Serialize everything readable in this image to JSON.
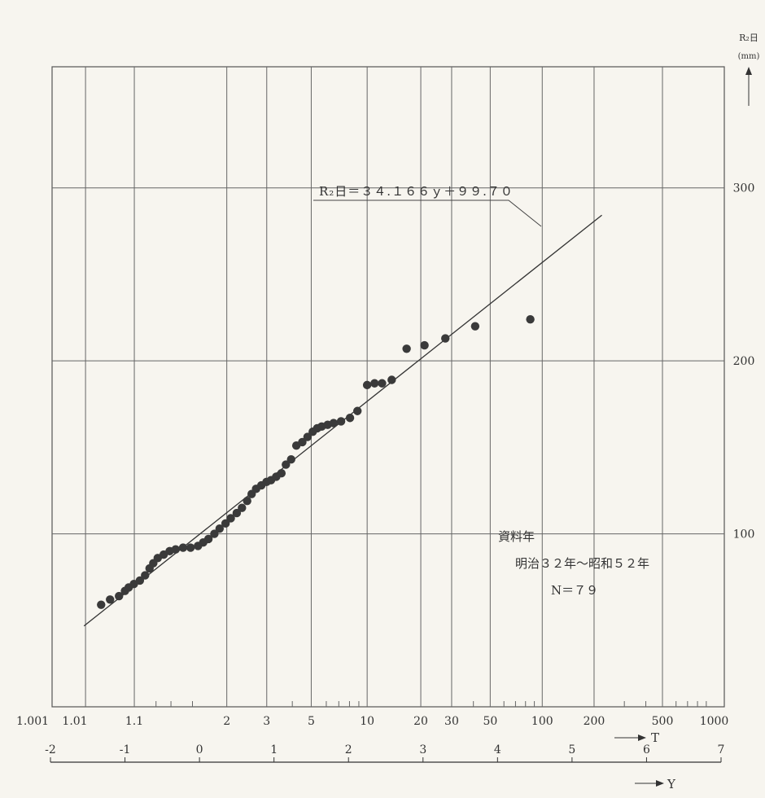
{
  "chart_data": {
    "type": "scatter",
    "title": "",
    "ylabel": "R₂日",
    "yunit": "(mm)",
    "xlabel_top": "T",
    "xlabel_bottom": "Y",
    "ylim": [
      0,
      370
    ],
    "y_ticks": [
      100,
      200,
      300
    ],
    "y_tick_labels": [
      "100",
      "200",
      "300"
    ],
    "x_lim_y": [
      -2,
      7
    ],
    "y_axis_ticks": [
      -2,
      -1,
      0,
      1,
      2,
      3,
      4,
      5,
      6,
      7
    ],
    "y_axis_tick_labels": [
      "-2",
      "-1",
      "0",
      "1",
      "2",
      "3",
      "4",
      "5",
      "6",
      "7"
    ],
    "t_axis_labels": [
      {
        "label": "1.001",
        "t": 1.001
      },
      {
        "label": "1.01",
        "t": 1.01
      },
      {
        "label": "1.1",
        "t": 1.1
      },
      {
        "label": "2",
        "t": 2
      },
      {
        "label": "3",
        "t": 3
      },
      {
        "label": "5",
        "t": 5
      },
      {
        "label": "10",
        "t": 10
      },
      {
        "label": "20",
        "t": 20
      },
      {
        "label": "30",
        "t": 30
      },
      {
        "label": "50",
        "t": 50
      },
      {
        "label": "100",
        "t": 100
      },
      {
        "label": "200",
        "t": 200
      },
      {
        "label": "500",
        "t": 500
      },
      {
        "label": "1000",
        "t": 1000
      }
    ],
    "t_gridlines": [
      1.01,
      1.1,
      2,
      3,
      5,
      10,
      20,
      30,
      50,
      100,
      200,
      500
    ],
    "grid": true,
    "fit_line": {
      "label": "R₂日＝３４.１６６ｙ＋９９.７０",
      "slope": 34.166,
      "intercept": 99.7,
      "y_range": [
        -1.55,
        5.4
      ]
    },
    "annotation": {
      "line1": "資料年",
      "line2": "明治３２年〜昭和５２年",
      "line3": "N＝７９"
    },
    "series": [
      {
        "points": [
          [
            -1.32,
            59
          ],
          [
            -1.2,
            62
          ],
          [
            -1.08,
            64
          ],
          [
            -1.0,
            67
          ],
          [
            -0.95,
            69
          ],
          [
            -0.88,
            71
          ],
          [
            -0.8,
            73
          ],
          [
            -0.73,
            76
          ],
          [
            -0.67,
            80
          ],
          [
            -0.62,
            83
          ],
          [
            -0.56,
            86
          ],
          [
            -0.48,
            88
          ],
          [
            -0.4,
            90
          ],
          [
            -0.32,
            91
          ],
          [
            -0.22,
            92
          ],
          [
            -0.12,
            92
          ],
          [
            -0.02,
            93
          ],
          [
            0.05,
            95
          ],
          [
            0.12,
            97
          ],
          [
            0.2,
            100
          ],
          [
            0.27,
            103
          ],
          [
            0.35,
            106
          ],
          [
            0.42,
            109
          ],
          [
            0.5,
            112
          ],
          [
            0.57,
            115
          ],
          [
            0.64,
            119
          ],
          [
            0.7,
            123
          ],
          [
            0.76,
            126
          ],
          [
            0.83,
            128
          ],
          [
            0.9,
            130
          ],
          [
            0.96,
            131
          ],
          [
            1.03,
            133
          ],
          [
            1.1,
            135
          ],
          [
            1.16,
            140
          ],
          [
            1.23,
            143
          ],
          [
            1.3,
            151
          ],
          [
            1.38,
            153
          ],
          [
            1.45,
            156
          ],
          [
            1.52,
            159
          ],
          [
            1.58,
            161
          ],
          [
            1.64,
            162
          ],
          [
            1.72,
            163
          ],
          [
            1.8,
            164
          ],
          [
            1.9,
            165
          ],
          [
            2.02,
            167
          ],
          [
            2.12,
            171
          ],
          [
            2.25,
            186
          ],
          [
            2.35,
            187
          ],
          [
            2.45,
            187
          ],
          [
            2.58,
            189
          ],
          [
            2.78,
            207
          ],
          [
            3.02,
            209
          ],
          [
            3.3,
            213
          ],
          [
            3.7,
            220
          ],
          [
            4.44,
            224
          ]
        ]
      }
    ],
    "x_arrow_label_T": "T",
    "x_arrow_label_Y": "Y"
  }
}
